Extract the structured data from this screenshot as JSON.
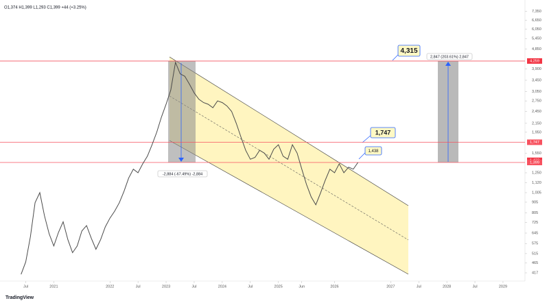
{
  "chart_data": {
    "type": "line",
    "header": "O1,374 H1,399 L1,293 C1,399 +44 (+3.25%)",
    "logo": "TradingView",
    "color": "#4a4a4a",
    "log_scale": true,
    "x": [
      5,
      6,
      7,
      8,
      9,
      10,
      11,
      12,
      13,
      14,
      15,
      16,
      17,
      18,
      19,
      20,
      21,
      22,
      23,
      24,
      25,
      26,
      27,
      28,
      29,
      30,
      31,
      32,
      33,
      34,
      35,
      36,
      37,
      38,
      39,
      40,
      41,
      42,
      43,
      44,
      45,
      46,
      47,
      48,
      49,
      50,
      51,
      52,
      53,
      54,
      55,
      56,
      57,
      58,
      59,
      60,
      61,
      62,
      63,
      64,
      65,
      66,
      67,
      68,
      69,
      70,
      71,
      72,
      73,
      74,
      75,
      76,
      77
    ],
    "values": [
      410,
      470,
      620,
      900,
      1005,
      780,
      640,
      560,
      650,
      730,
      600,
      520,
      560,
      660,
      700,
      610,
      540,
      600,
      690,
      760,
      820,
      900,
      1020,
      1180,
      1300,
      1250,
      1380,
      1500,
      1700,
      1950,
      2300,
      2650,
      3100,
      4200,
      3700,
      3600,
      3300,
      3000,
      2800,
      2700,
      2650,
      2550,
      2750,
      2700,
      2600,
      2450,
      2150,
      1850,
      1600,
      1450,
      1480,
      1600,
      1550,
      1450,
      1620,
      1700,
      1500,
      1450,
      1700,
      1550,
      1300,
      1100,
      960,
      880,
      1000,
      1150,
      1300,
      1250,
      1380,
      1250,
      1330,
      1300,
      1399
    ],
    "xlim": [
      0.5,
      112.7
    ],
    "xticks": [
      {
        "value": 6,
        "label": "Jul"
      },
      {
        "value": 12,
        "label": "2021"
      },
      {
        "value": 24,
        "label": "2022"
      },
      {
        "value": 30,
        "label": "Jul"
      },
      {
        "value": 36,
        "label": "2023"
      },
      {
        "value": 42,
        "label": "Jul"
      },
      {
        "value": 48,
        "label": "2024"
      },
      {
        "value": 54,
        "label": "Jul"
      },
      {
        "value": 60,
        "label": "2025"
      },
      {
        "value": 65,
        "label": "Jun"
      },
      {
        "value": 72,
        "label": "2026"
      },
      {
        "value": 84,
        "label": "2027"
      },
      {
        "value": 90,
        "label": "Jul"
      },
      {
        "value": 96,
        "label": "2028"
      },
      {
        "value": 102,
        "label": "Jul"
      },
      {
        "value": 108,
        "label": "2029"
      }
    ],
    "ylim": [
      381,
      8010
    ],
    "yticks": [
      417,
      465,
      515,
      575,
      645,
      725,
      805,
      905,
      {
        "value": 1005,
        "label": "1,005"
      },
      {
        "value": 1120,
        "label": "1,120"
      },
      {
        "value": 1250,
        "label": "1,250"
      },
      {
        "value": 1550,
        "label": "1,550"
      },
      {
        "value": 1950,
        "label": "1,950"
      },
      {
        "value": 2150,
        "label": "2,150"
      },
      {
        "value": 2450,
        "label": "2,450"
      },
      {
        "value": 2750,
        "label": "2,750"
      },
      {
        "value": 3050,
        "label": "3,050"
      },
      {
        "value": 3450,
        "label": "3,450"
      },
      {
        "value": 3900,
        "label": "3,900"
      },
      {
        "value": 4850,
        "label": "4,850"
      },
      {
        "value": 5450,
        "label": "5,450"
      },
      {
        "value": 6050,
        "label": "6,050"
      },
      {
        "value": 6650,
        "label": "6,650"
      },
      {
        "value": 7350,
        "label": "7,350"
      }
    ],
    "hlines": [
      {
        "value": 4259,
        "label": "4,259",
        "color": "#f23645"
      },
      {
        "value": 1747,
        "label": "1,747",
        "color": "#f7525f"
      },
      {
        "value": 1433,
        "label": "1,433",
        "color": "#f23645"
      },
      {
        "value": 1399,
        "label": "1,399",
        "color": "#f7525f"
      }
    ],
    "annotations": [
      "4,315",
      "1,747",
      "1,438",
      "-2,884 (-67.49%) -2,884",
      "2,847 (203.61%) 2,847"
    ]
  }
}
